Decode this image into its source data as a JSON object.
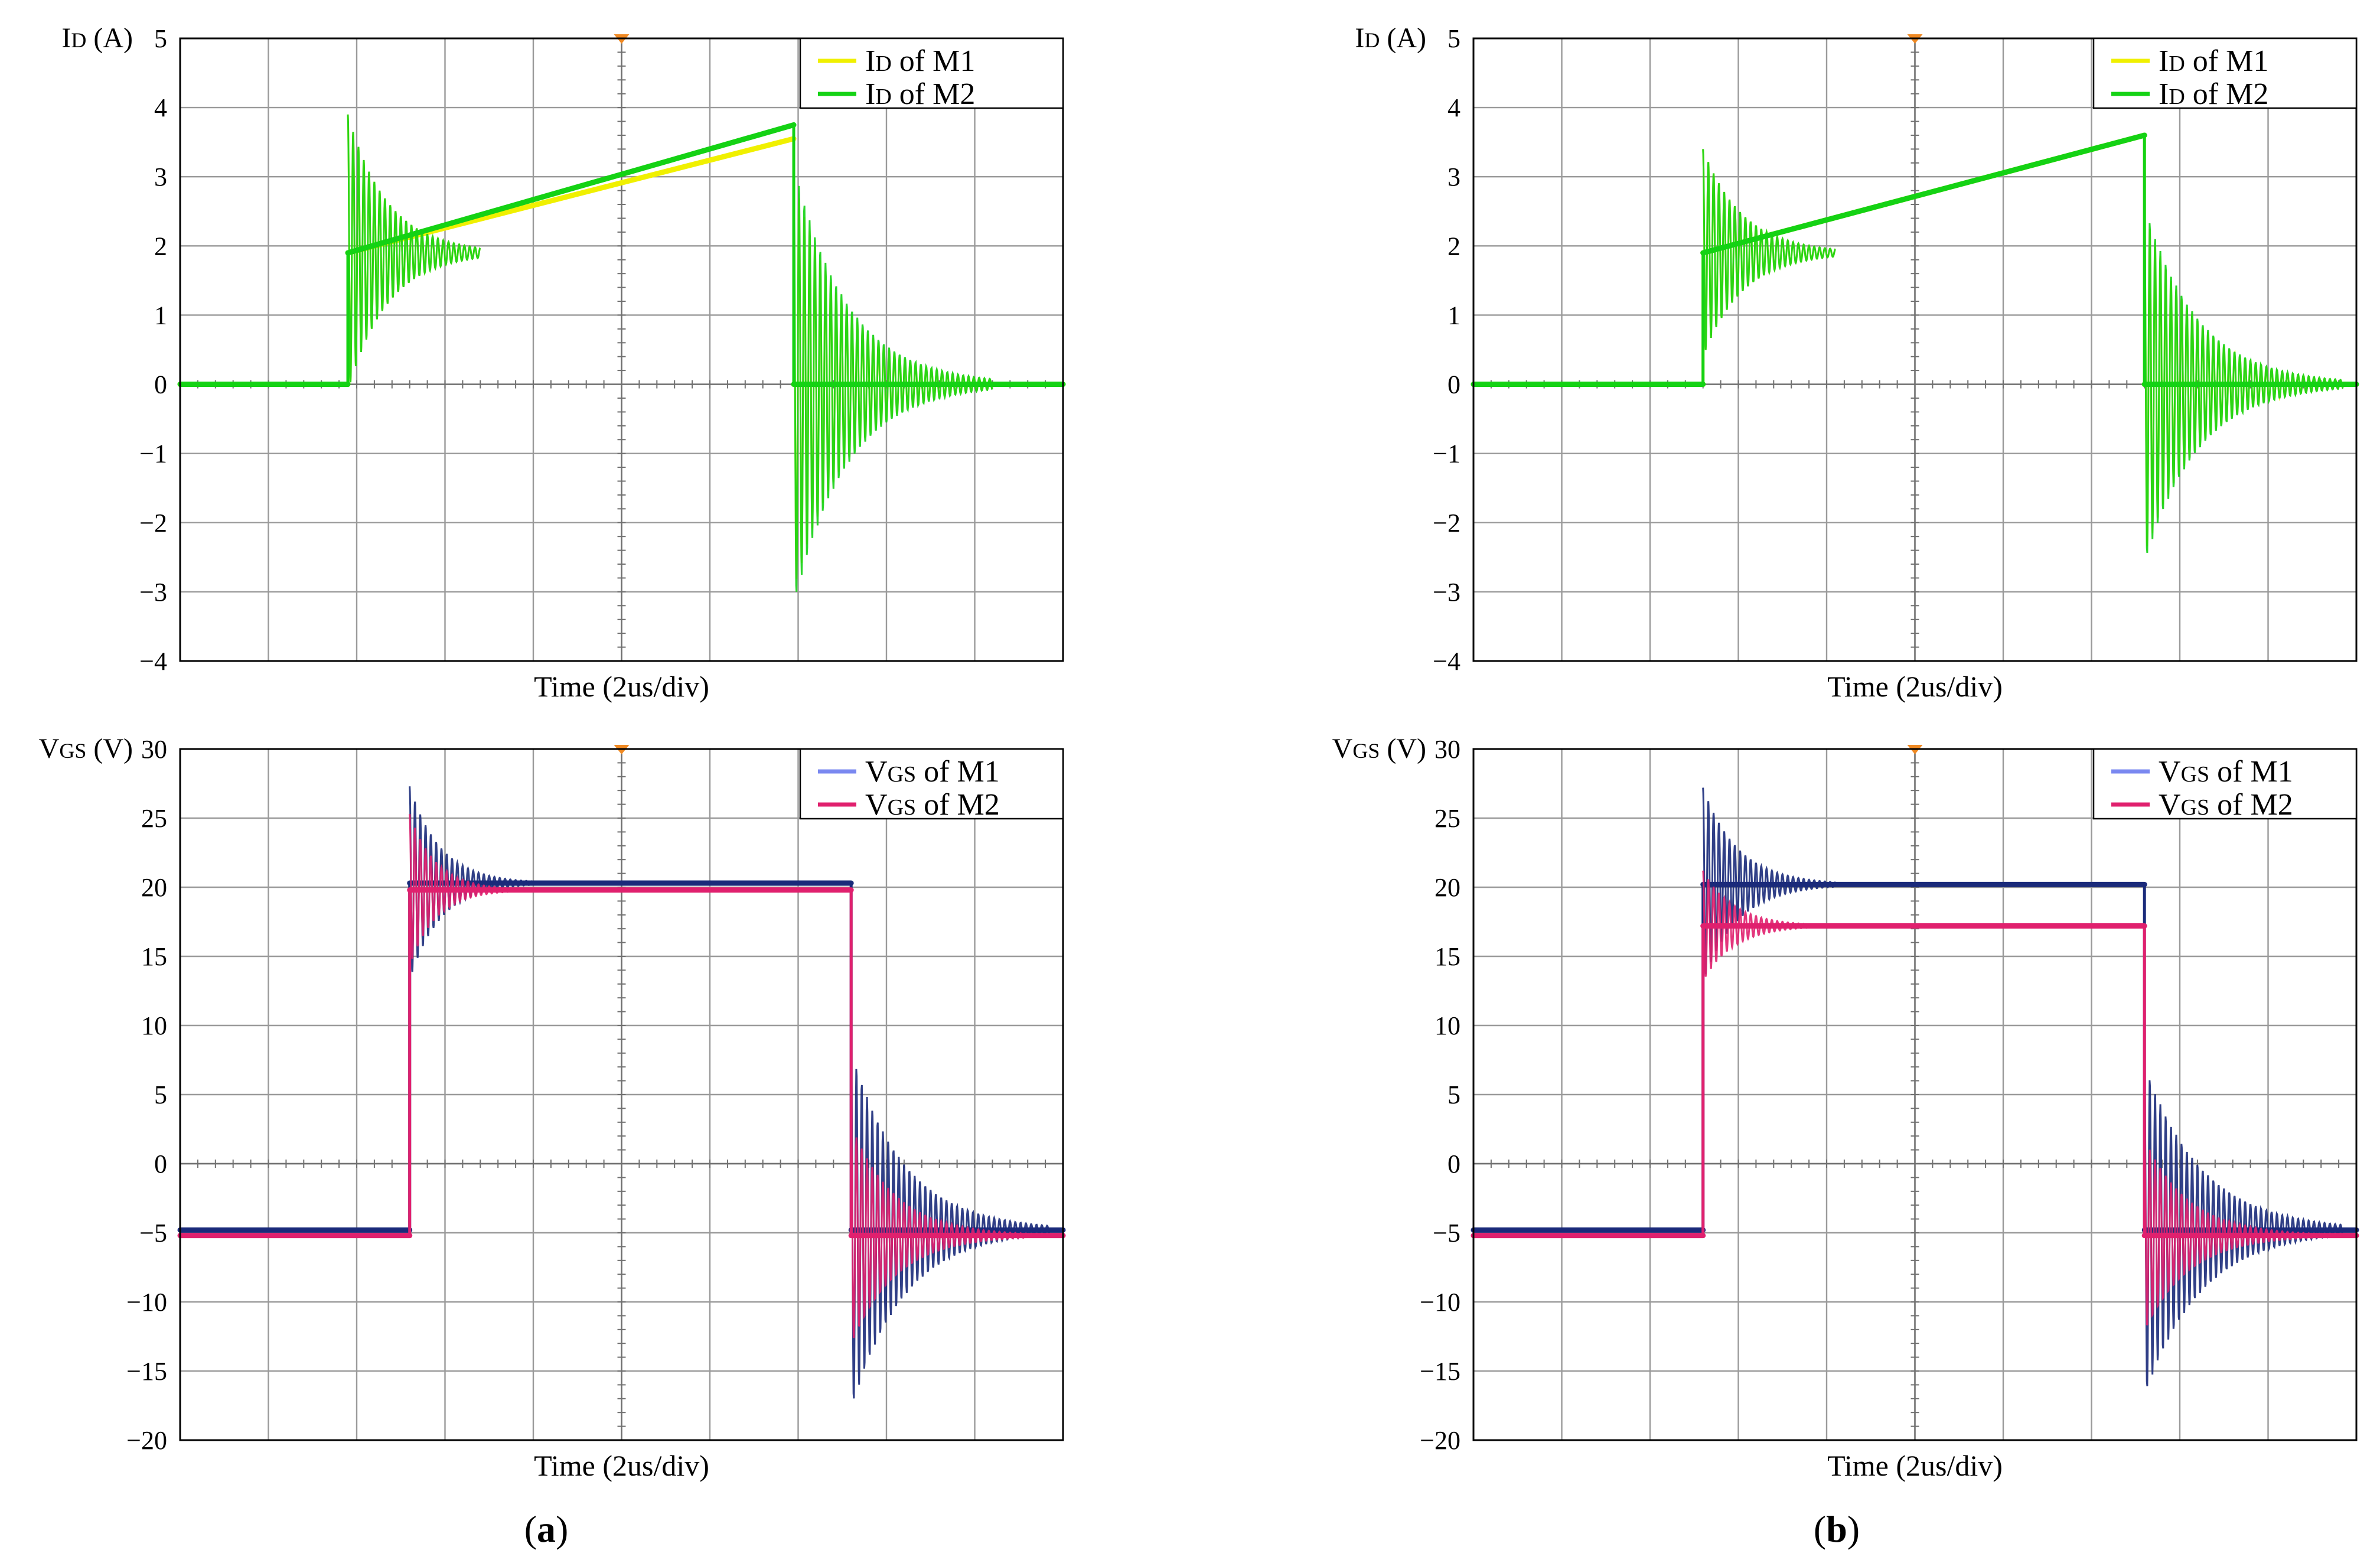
{
  "figure": {
    "panels": [
      {
        "label": "a",
        "label_display": "(a)"
      },
      {
        "label": "b",
        "label_display": "(b)"
      }
    ]
  },
  "chart_data": [
    {
      "id": "a-top",
      "panel": "a",
      "type": "line",
      "title": "",
      "xlabel": "Time (2us/div)",
      "ylabel": "ID (A)",
      "ylabel_main": "I",
      "ylabel_sub": "D",
      "ylabel_unit": " (A)",
      "xlim": [
        0,
        20
      ],
      "ylim": [
        -4,
        5
      ],
      "yticks": [
        -4,
        -3,
        -2,
        -1,
        0,
        1,
        2,
        3,
        4,
        5
      ],
      "ytick_labels": [
        "−4",
        "−3",
        "−2",
        "−1",
        "0",
        "1",
        "2",
        "3",
        "4",
        "5"
      ],
      "grid": true,
      "legend_position": "top-right",
      "series": [
        {
          "name": "ID of M1",
          "legend_main": "I",
          "legend_sub": "D",
          "legend_rest": " of M1",
          "color": "#f0f000",
          "segments": [
            {
              "x": [
                0,
                3.8
              ],
              "y": [
                0,
                0
              ]
            },
            {
              "x": [
                3.8,
                13.9
              ],
              "y": [
                1.9,
                3.55
              ]
            },
            {
              "x": [
                13.9,
                20
              ],
              "y": [
                0,
                0
              ]
            }
          ],
          "ringing": [
            {
              "t0": 3.8,
              "A": 2.0,
              "base": 1.9,
              "tau": 0.9,
              "period": 0.12,
              "dur": 3.0
            },
            {
              "t0": 13.9,
              "A": 3.0,
              "base": 0,
              "tau": 1.2,
              "period": 0.12,
              "dur": 4.5
            }
          ]
        },
        {
          "name": "ID of M2",
          "legend_main": "I",
          "legend_sub": "D",
          "legend_rest": " of M2",
          "color": "#14d214",
          "segments": [
            {
              "x": [
                0,
                3.8
              ],
              "y": [
                0,
                0
              ]
            },
            {
              "x": [
                3.8,
                13.9
              ],
              "y": [
                1.9,
                3.75
              ]
            },
            {
              "x": [
                13.9,
                20
              ],
              "y": [
                0,
                0
              ]
            }
          ],
          "ringing": [
            {
              "t0": 3.8,
              "A": 2.0,
              "base": 1.9,
              "tau": 0.9,
              "period": 0.12,
              "dur": 3.0
            },
            {
              "t0": 13.9,
              "A": 3.2,
              "base": 0,
              "tau": 1.2,
              "period": 0.12,
              "dur": 4.5
            }
          ]
        }
      ]
    },
    {
      "id": "a-bottom",
      "panel": "a",
      "type": "line",
      "title": "",
      "xlabel": "Time (2us/div)",
      "ylabel": "VGS (V)",
      "ylabel_main": "V",
      "ylabel_sub": "GS",
      "ylabel_unit": " (V)",
      "xlim": [
        0,
        20
      ],
      "ylim": [
        -20,
        30
      ],
      "yticks": [
        -20,
        -15,
        -10,
        -5,
        0,
        5,
        10,
        15,
        20,
        25,
        30
      ],
      "ytick_labels": [
        "−20",
        "−15",
        "−10",
        "−5",
        "0",
        "5",
        "10",
        "15",
        "20",
        "25",
        "30"
      ],
      "grid": true,
      "legend_position": "top-right",
      "series": [
        {
          "name": "VGS of M1",
          "legend_main": "V",
          "legend_sub": "GS",
          "legend_rest": " of M1",
          "color": "#1a2a7a",
          "legend_color": "#7a88f0",
          "segments": [
            {
              "x": [
                0,
                5.2
              ],
              "y": [
                -4.8,
                -4.8
              ]
            },
            {
              "x": [
                5.2,
                15.2
              ],
              "y": [
                20.3,
                20.3
              ]
            },
            {
              "x": [
                15.2,
                20
              ],
              "y": [
                -4.8,
                -4.8
              ]
            }
          ],
          "ringing": [
            {
              "t0": 5.2,
              "A": 7.0,
              "base": 20.3,
              "tau": 0.7,
              "period": 0.12,
              "dur": 3.0
            },
            {
              "t0": 15.2,
              "A": 13.0,
              "base": -4.8,
              "tau": 1.2,
              "period": 0.12,
              "dur": 4.5
            }
          ]
        },
        {
          "name": "VGS of M2",
          "legend_main": "V",
          "legend_sub": "GS",
          "legend_rest": " of M2",
          "color": "#e0206e",
          "segments": [
            {
              "x": [
                0,
                5.2
              ],
              "y": [
                -5.2,
                -5.2
              ]
            },
            {
              "x": [
                5.2,
                15.2
              ],
              "y": [
                19.8,
                19.8
              ]
            },
            {
              "x": [
                15.2,
                20
              ],
              "y": [
                -5.2,
                -5.2
              ]
            }
          ],
          "ringing": [
            {
              "t0": 5.2,
              "A": 5.5,
              "base": 19.8,
              "tau": 0.6,
              "period": 0.12,
              "dur": 2.5
            },
            {
              "t0": 15.2,
              "A": 8.0,
              "base": -5.2,
              "tau": 1.0,
              "period": 0.12,
              "dur": 4.0
            }
          ]
        }
      ]
    },
    {
      "id": "b-top",
      "panel": "b",
      "type": "line",
      "title": "",
      "xlabel": "Time (2us/div)",
      "ylabel": "ID (A)",
      "ylabel_main": "I",
      "ylabel_sub": "D",
      "ylabel_unit": " (A)",
      "xlim": [
        0,
        20
      ],
      "ylim": [
        -4,
        5
      ],
      "yticks": [
        -4,
        -3,
        -2,
        -1,
        0,
        1,
        2,
        3,
        4,
        5
      ],
      "ytick_labels": [
        "−4",
        "−3",
        "−2",
        "−1",
        "0",
        "1",
        "2",
        "3",
        "4",
        "5"
      ],
      "grid": true,
      "legend_position": "top-right",
      "series": [
        {
          "name": "ID of M1",
          "legend_main": "I",
          "legend_sub": "D",
          "legend_rest": " of M1",
          "color": "#f0f000",
          "segments": [
            {
              "x": [
                0,
                5.2
              ],
              "y": [
                0,
                0
              ]
            },
            {
              "x": [
                5.2,
                15.2
              ],
              "y": [
                1.9,
                3.6
              ]
            },
            {
              "x": [
                15.2,
                20
              ],
              "y": [
                0,
                0
              ]
            }
          ],
          "ringing": [
            {
              "t0": 5.2,
              "A": 1.5,
              "base": 1.9,
              "tau": 0.9,
              "period": 0.12,
              "dur": 3.0
            },
            {
              "t0": 15.2,
              "A": 2.5,
              "base": 0,
              "tau": 1.2,
              "period": 0.12,
              "dur": 4.5
            }
          ]
        },
        {
          "name": "ID of M2",
          "legend_main": "I",
          "legend_sub": "D",
          "legend_rest": " of M2",
          "color": "#14d214",
          "segments": [
            {
              "x": [
                0,
                5.2
              ],
              "y": [
                0,
                0
              ]
            },
            {
              "x": [
                5.2,
                15.2
              ],
              "y": [
                1.9,
                3.6
              ]
            },
            {
              "x": [
                15.2,
                20
              ],
              "y": [
                0,
                0
              ]
            }
          ],
          "ringing": [
            {
              "t0": 5.2,
              "A": 1.5,
              "base": 1.9,
              "tau": 0.9,
              "period": 0.12,
              "dur": 3.0
            },
            {
              "t0": 15.2,
              "A": 2.6,
              "base": 0,
              "tau": 1.2,
              "period": 0.12,
              "dur": 4.5
            }
          ]
        }
      ]
    },
    {
      "id": "b-bottom",
      "panel": "b",
      "type": "line",
      "title": "",
      "xlabel": "Time (2us/div)",
      "ylabel": "VGS (V)",
      "ylabel_main": "V",
      "ylabel_sub": "GS",
      "ylabel_unit": " (V)",
      "xlim": [
        0,
        20
      ],
      "ylim": [
        -20,
        30
      ],
      "yticks": [
        -20,
        -15,
        -10,
        -5,
        0,
        5,
        10,
        15,
        20,
        25,
        30
      ],
      "ytick_labels": [
        "−20",
        "−15",
        "−10",
        "−5",
        "0",
        "5",
        "10",
        "15",
        "20",
        "25",
        "30"
      ],
      "grid": true,
      "legend_position": "top-right",
      "series": [
        {
          "name": "VGS of M1",
          "legend_main": "V",
          "legend_sub": "GS",
          "legend_rest": " of M1",
          "color": "#1a2a7a",
          "legend_color": "#7a88f0",
          "segments": [
            {
              "x": [
                0,
                5.2
              ],
              "y": [
                -4.8,
                -4.8
              ]
            },
            {
              "x": [
                5.2,
                15.2
              ],
              "y": [
                20.2,
                20.2
              ]
            },
            {
              "x": [
                15.2,
                20
              ],
              "y": [
                -4.8,
                -4.8
              ]
            }
          ],
          "ringing": [
            {
              "t0": 5.2,
              "A": 7.0,
              "base": 20.2,
              "tau": 0.8,
              "period": 0.12,
              "dur": 3.0
            },
            {
              "t0": 15.2,
              "A": 12.0,
              "base": -4.8,
              "tau": 1.3,
              "period": 0.12,
              "dur": 4.5
            }
          ]
        },
        {
          "name": "VGS of M2",
          "legend_main": "V",
          "legend_sub": "GS",
          "legend_rest": " of M2",
          "color": "#e0206e",
          "segments": [
            {
              "x": [
                0,
                5.2
              ],
              "y": [
                -5.2,
                -5.2
              ]
            },
            {
              "x": [
                5.2,
                15.2
              ],
              "y": [
                17.2,
                17.2
              ]
            },
            {
              "x": [
                15.2,
                20
              ],
              "y": [
                -5.2,
                -5.2
              ]
            }
          ],
          "ringing": [
            {
              "t0": 5.2,
              "A": 4.0,
              "base": 17.2,
              "tau": 0.7,
              "period": 0.12,
              "dur": 2.5
            },
            {
              "t0": 15.2,
              "A": 7.0,
              "base": -5.2,
              "tau": 1.0,
              "period": 0.12,
              "dur": 4.0
            }
          ]
        }
      ]
    }
  ]
}
